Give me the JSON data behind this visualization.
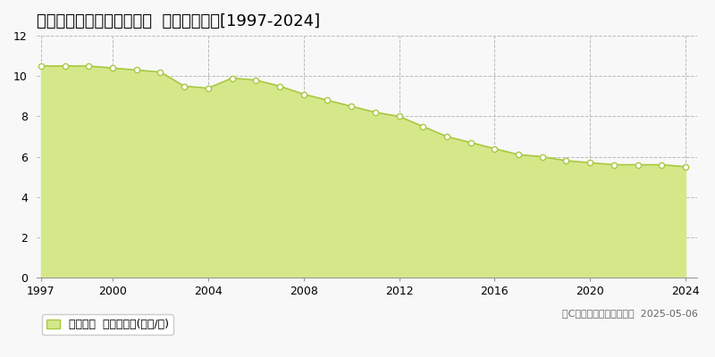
{
  "title": "東彼杜郡東彼杜町彼杜宿郷  基準地価推移[1997-2024]",
  "years": [
    1997,
    1998,
    1999,
    2000,
    2001,
    2002,
    2003,
    2004,
    2005,
    2006,
    2007,
    2008,
    2009,
    2010,
    2011,
    2012,
    2013,
    2014,
    2015,
    2016,
    2017,
    2018,
    2019,
    2020,
    2021,
    2022,
    2023,
    2024
  ],
  "values": [
    10.5,
    10.5,
    10.5,
    10.4,
    10.3,
    10.2,
    9.5,
    9.4,
    9.9,
    9.8,
    9.5,
    9.1,
    8.8,
    8.5,
    8.2,
    8.0,
    7.5,
    7.0,
    6.7,
    6.4,
    6.1,
    6.0,
    5.8,
    5.7,
    5.6,
    5.6,
    5.6,
    5.5
  ],
  "line_color": "#a8c840",
  "fill_color": "#d4e88a",
  "marker_face_color": "#ffffff",
  "marker_edge_color": "#a8c840",
  "background_color": "#f8f8f8",
  "plot_bg_color": "#f8f8f8",
  "grid_color": "#bbbbbb",
  "ylim": [
    0,
    12
  ],
  "yticks": [
    0,
    2,
    4,
    6,
    8,
    10,
    12
  ],
  "xticks": [
    1997,
    2000,
    2004,
    2008,
    2012,
    2016,
    2020,
    2024
  ],
  "xlim_left": 1996.8,
  "xlim_right": 2024.5,
  "legend_label": "基準地価  平均坪単価(万円/坪)",
  "copyright_text": "（C）土地価格ドットコム  2025-05-06",
  "title_fontsize": 13,
  "tick_fontsize": 9,
  "legend_fontsize": 9,
  "copyright_fontsize": 8
}
